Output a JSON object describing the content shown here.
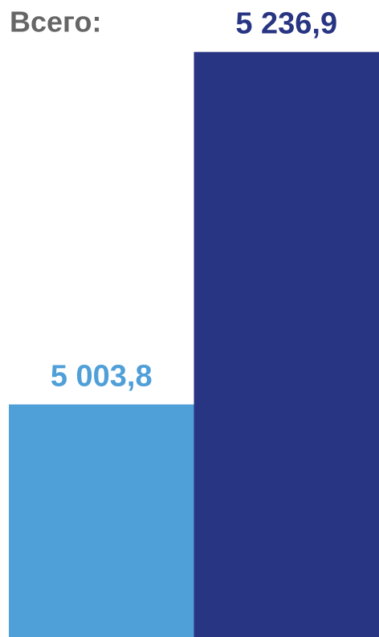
{
  "chart_data": {
    "type": "bar",
    "title": "Всего:",
    "categories": [
      null,
      null
    ],
    "values": [
      5003.8,
      5236.9
    ],
    "value_labels": [
      "5 003,8",
      "5 236,9"
    ],
    "colors": [
      "#4f9fd8",
      "#283583"
    ],
    "ylim": [
      4850,
      5250
    ]
  }
}
